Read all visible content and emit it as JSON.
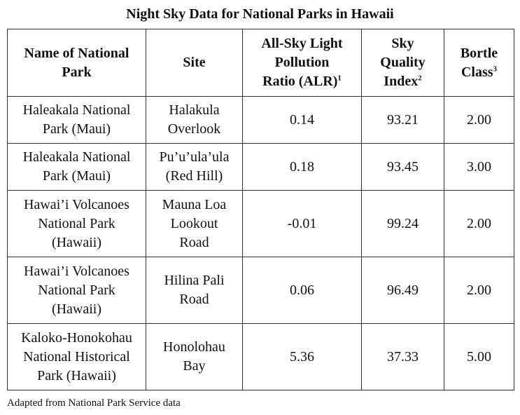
{
  "title": "Night Sky Data for National Parks in Hawaii",
  "headers": [
    {
      "lines": [
        "Name of National",
        "Park"
      ],
      "sup": ""
    },
    {
      "lines": [
        "Site"
      ],
      "sup": ""
    },
    {
      "lines": [
        "All-Sky Light",
        "Pollution",
        "Ratio (ALR)"
      ],
      "sup": "1"
    },
    {
      "lines": [
        "Sky",
        "Quality",
        "Index"
      ],
      "sup": "2"
    },
    {
      "lines": [
        "Bortle",
        "Class"
      ],
      "sup": "3"
    }
  ],
  "rows": [
    {
      "park": [
        "Haleakala National",
        "Park (Maui)"
      ],
      "site": [
        "Halakula",
        "Overlook"
      ],
      "alr": "0.14",
      "sqi": "93.21",
      "bortle": "2.00"
    },
    {
      "park": [
        "Haleakala National",
        "Park (Maui)"
      ],
      "site": [
        "Pu’u’ula’ula",
        "(Red Hill)"
      ],
      "alr": "0.18",
      "sqi": "93.45",
      "bortle": "3.00"
    },
    {
      "park": [
        "Hawai’i Volcanoes",
        "National Park",
        "(Hawaii)"
      ],
      "site": [
        "Mauna Loa",
        "Lookout",
        "Road"
      ],
      "alr": "-0.01",
      "sqi": "99.24",
      "bortle": "2.00"
    },
    {
      "park": [
        "Hawai’i Volcanoes",
        "National Park",
        "(Hawaii)"
      ],
      "site": [
        "Hilina Pali",
        "Road"
      ],
      "alr": "0.06",
      "sqi": "96.49",
      "bortle": "2.00"
    },
    {
      "park": [
        "Kaloko-Honokohau",
        "National Historical",
        "Park (Hawaii)"
      ],
      "site": [
        "Honolohau",
        "Bay"
      ],
      "alr": "5.36",
      "sqi": "37.33",
      "bortle": "5.00"
    }
  ],
  "source": "Adapted from National Park Service data"
}
